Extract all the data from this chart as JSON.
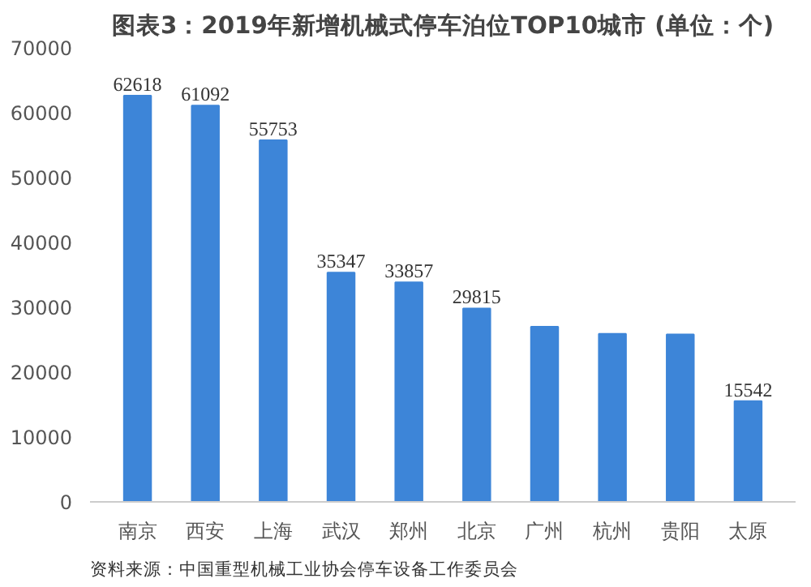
{
  "chart_data": {
    "type": "bar",
    "title": "图表3：2019年新增机械式停车泊位TOP10城市 (单位：个)",
    "categories": [
      "南京",
      "西安",
      "上海",
      "武汉",
      "郑州",
      "北京",
      "广州",
      "杭州",
      "贵阳",
      "太原"
    ],
    "values": [
      62618,
      61092,
      55753,
      35347,
      33857,
      29815,
      27000,
      25900,
      25800,
      15542
    ],
    "value_labels": [
      "62618",
      "61092",
      "55753",
      "35347",
      "33857",
      "29815",
      null,
      null,
      null,
      "15542"
    ],
    "color": "#3d85d8",
    "ylim": [
      0,
      70000
    ],
    "yticks": [
      0,
      10000,
      20000,
      30000,
      40000,
      50000,
      60000,
      70000
    ],
    "grid": false,
    "annotations": [
      "资料来源：中国重型机械工业协会停车设备工作委员会"
    ]
  }
}
